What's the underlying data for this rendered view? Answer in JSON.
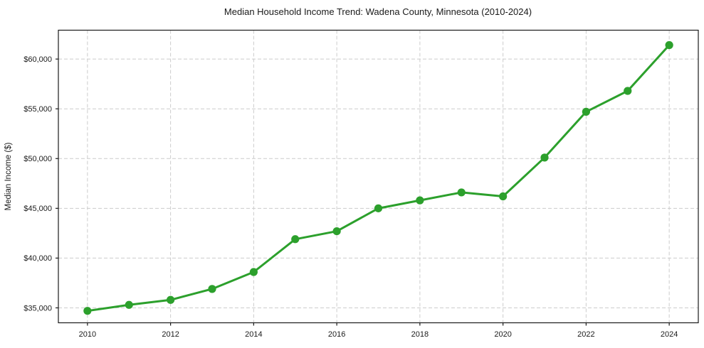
{
  "chart_data": {
    "type": "line",
    "title": "Median Household Income Trend: Wadena County, Minnesota (2010-2024)",
    "ylabel": "Median Income ($)",
    "x": [
      2010,
      2011,
      2012,
      2013,
      2014,
      2015,
      2016,
      2017,
      2018,
      2019,
      2020,
      2021,
      2022,
      2023,
      2024
    ],
    "values": [
      34700,
      35300,
      35800,
      36900,
      38600,
      41900,
      42700,
      45000,
      45800,
      46600,
      46200,
      50100,
      54700,
      56800,
      61400
    ],
    "x_ticks": [
      2010,
      2012,
      2014,
      2016,
      2018,
      2020,
      2022,
      2024
    ],
    "x_tick_labels": [
      "2010",
      "2012",
      "2014",
      "2016",
      "2018",
      "2020",
      "2022",
      "2024"
    ],
    "y_ticks": [
      35000,
      40000,
      45000,
      50000,
      55000,
      60000
    ],
    "y_tick_labels": [
      "$35,000",
      "$40,000",
      "$45,000",
      "$50,000",
      "$55,000",
      "$60,000"
    ],
    "xlim": [
      2009.3,
      2024.7
    ],
    "ylim": [
      33500,
      62900
    ],
    "grid": true,
    "legend": "none",
    "line_color": "#2ca02c",
    "marker_color": "#2ca02c",
    "grid_color": "#cccccc",
    "axis_color": "#1a1a1a",
    "background_color": "#ffffff"
  }
}
